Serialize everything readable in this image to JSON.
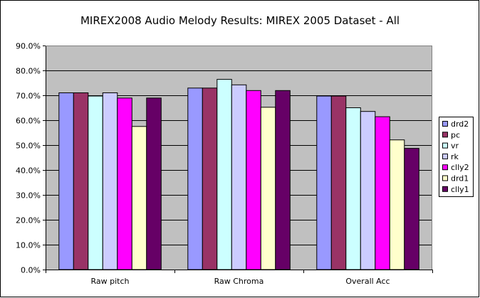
{
  "chart_data": {
    "type": "bar",
    "title": "MIREX2008 Audio Melody Results: MIREX 2005 Dataset - All",
    "categories": [
      "Raw pitch",
      "Raw Chroma",
      "Overall Acc"
    ],
    "ylim": [
      0,
      90
    ],
    "yticks": [
      0,
      10,
      20,
      30,
      40,
      50,
      60,
      70,
      80,
      90
    ],
    "ytick_labels": [
      "0.0%",
      "10.0%",
      "20.0%",
      "30.0%",
      "40.0%",
      "50.0%",
      "60.0%",
      "70.0%",
      "80.0%",
      "90.0%"
    ],
    "grid": true,
    "legend_position": "right",
    "plot_background": "#c0c0c0",
    "series": [
      {
        "name": "drd2",
        "color": "#9999ff",
        "values": [
          71.0,
          72.9,
          69.7
        ]
      },
      {
        "name": "pc",
        "color": "#993366",
        "values": [
          71.0,
          72.9,
          69.7
        ]
      },
      {
        "name": "vr",
        "color": "#ccffff",
        "values": [
          69.7,
          76.4,
          65.0
        ]
      },
      {
        "name": "rk",
        "color": "#ccccff",
        "values": [
          71.0,
          74.2,
          63.5
        ]
      },
      {
        "name": "clly2",
        "color": "#ff00ff",
        "values": [
          68.9,
          71.9,
          61.4
        ]
      },
      {
        "name": "drd1",
        "color": "#ffffcc",
        "values": [
          57.5,
          65.2,
          52.1
        ]
      },
      {
        "name": "clly1",
        "color": "#660066",
        "values": [
          68.9,
          71.9,
          48.7
        ]
      }
    ]
  }
}
